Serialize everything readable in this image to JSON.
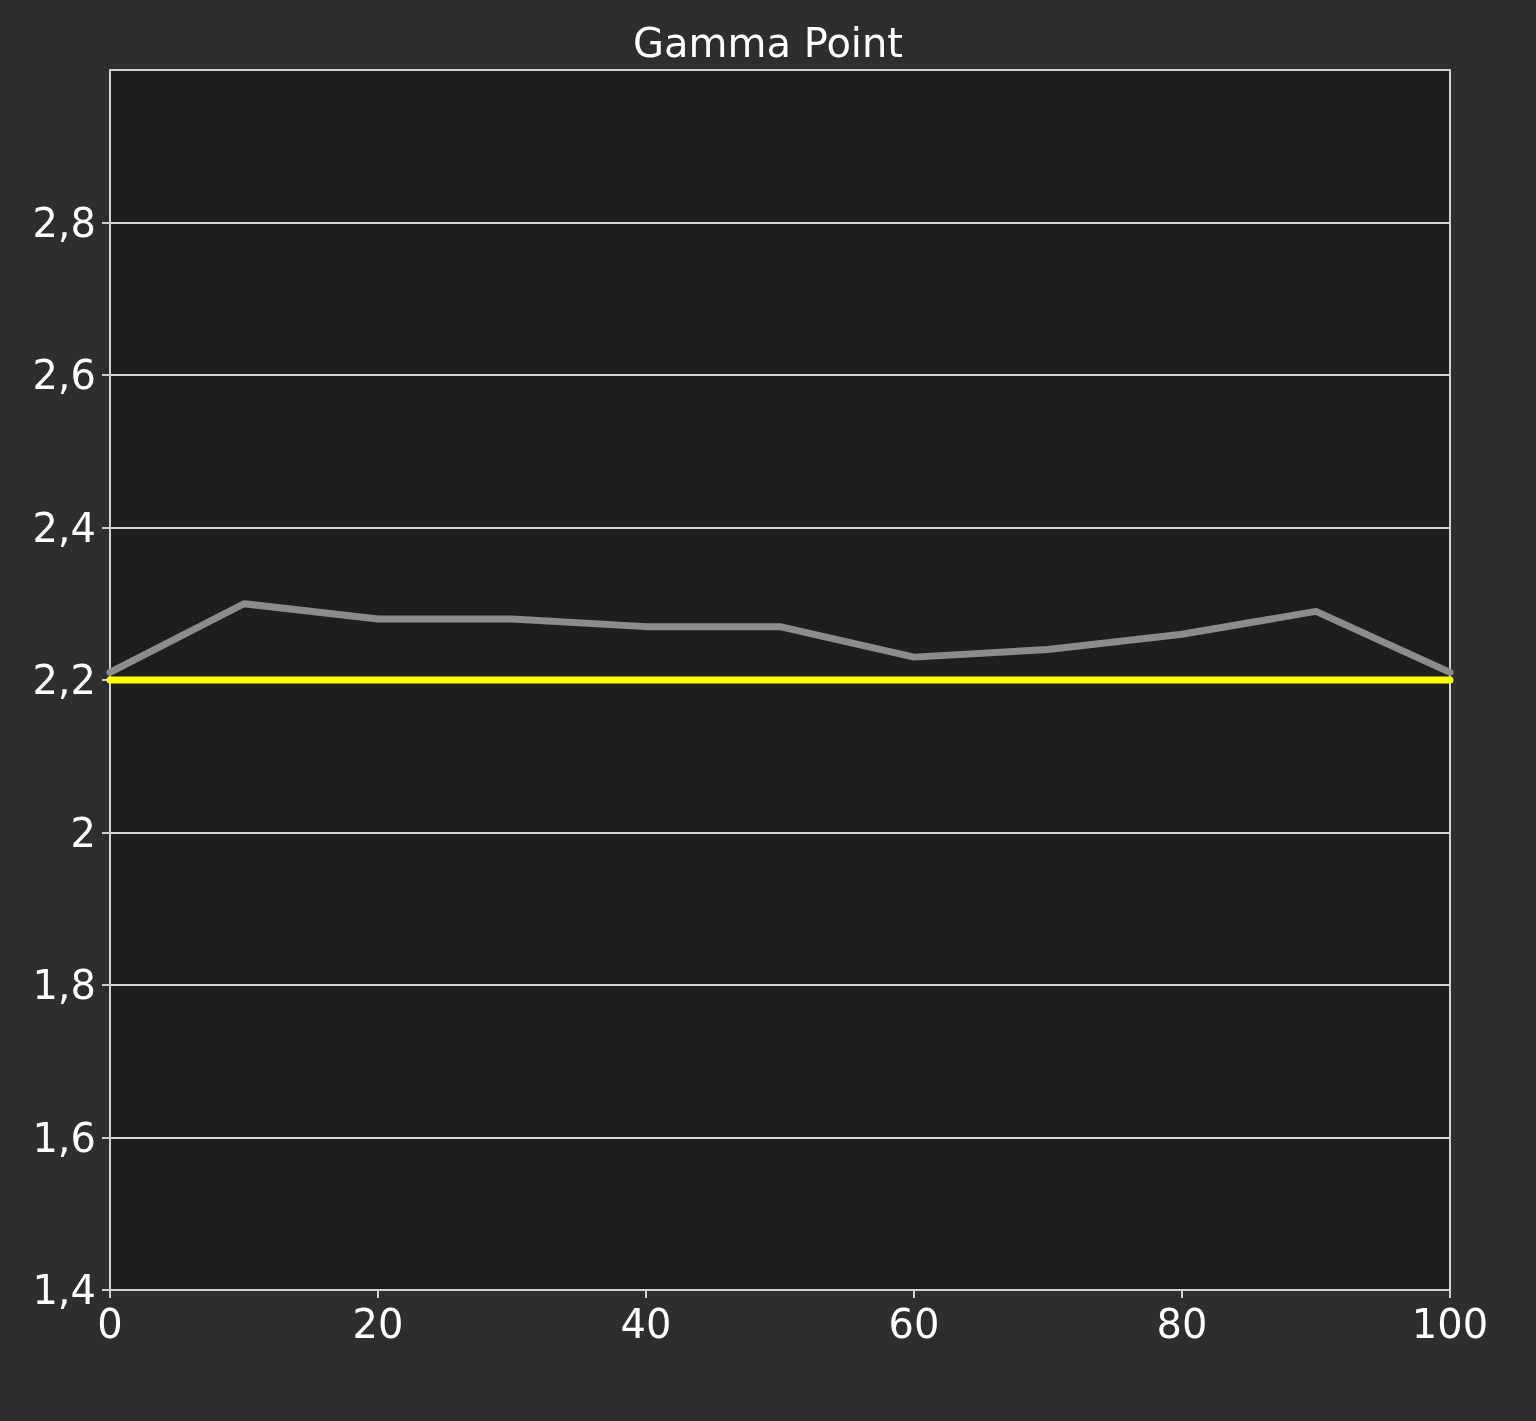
{
  "chart_data": {
    "type": "line",
    "title": "Gamma Point",
    "x": [
      0,
      10,
      20,
      30,
      40,
      50,
      60,
      70,
      80,
      90,
      100
    ],
    "series": [
      {
        "color": "#8c8c8c",
        "values": [
          2.21,
          2.3,
          2.28,
          2.28,
          2.27,
          2.27,
          2.23,
          2.24,
          2.26,
          2.29,
          2.21
        ]
      },
      {
        "color": "#ffff00",
        "values": [
          2.2,
          2.2,
          2.2,
          2.2,
          2.2,
          2.2,
          2.2,
          2.2,
          2.2,
          2.2,
          2.2
        ]
      }
    ],
    "xlim": [
      0,
      100
    ],
    "xticks": [
      0,
      20,
      40,
      60,
      80,
      100
    ],
    "ylim": [
      1.4,
      3.0
    ],
    "yticks": [
      {
        "value": 1.4,
        "label": "1,4"
      },
      {
        "value": 1.6,
        "label": "1,6"
      },
      {
        "value": 1.8,
        "label": "1,8"
      },
      2,
      {
        "value": 2.2,
        "label": "2,2"
      },
      {
        "value": 2.4,
        "label": "2,4"
      },
      {
        "value": 2.6,
        "label": "2,6"
      },
      {
        "value": 2.8,
        "label": "2,8"
      }
    ],
    "grid": "y",
    "marker": "none",
    "line_style": "solid"
  }
}
